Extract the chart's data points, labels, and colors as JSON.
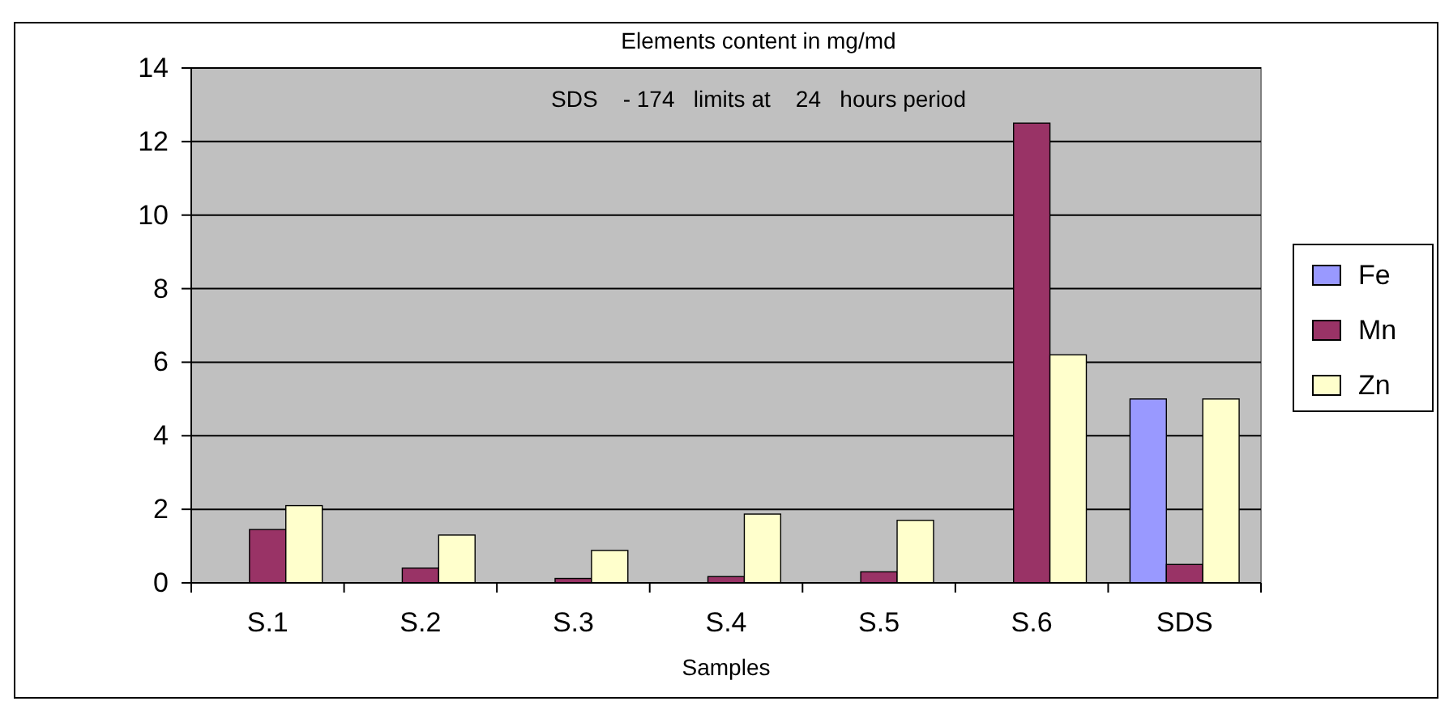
{
  "chart_data": {
    "type": "bar",
    "title": "Elements content in mg/md",
    "subtitle": "SDS    - 174   limits at    24   hours period",
    "xlabel": "Samples",
    "categories": [
      "S.1",
      "S.2",
      "S.3",
      "S.4",
      "S.5",
      "S.6",
      "SDS"
    ],
    "series": [
      {
        "name": "Fe",
        "color": "#9999ff",
        "values": [
          null,
          null,
          null,
          null,
          null,
          null,
          5
        ]
      },
      {
        "name": "Mn",
        "color": "#993366",
        "values": [
          1.45,
          0.4,
          0.12,
          0.17,
          0.3,
          12.5,
          0.5
        ]
      },
      {
        "name": "Zn",
        "color": "#ffffcc",
        "values": [
          2.1,
          1.3,
          0.88,
          1.87,
          1.7,
          6.2,
          5
        ]
      }
    ],
    "ylim": [
      0,
      14
    ],
    "yticks": [
      0,
      2,
      4,
      6,
      8,
      10,
      12,
      14
    ],
    "grid": "y",
    "legend": "right"
  }
}
